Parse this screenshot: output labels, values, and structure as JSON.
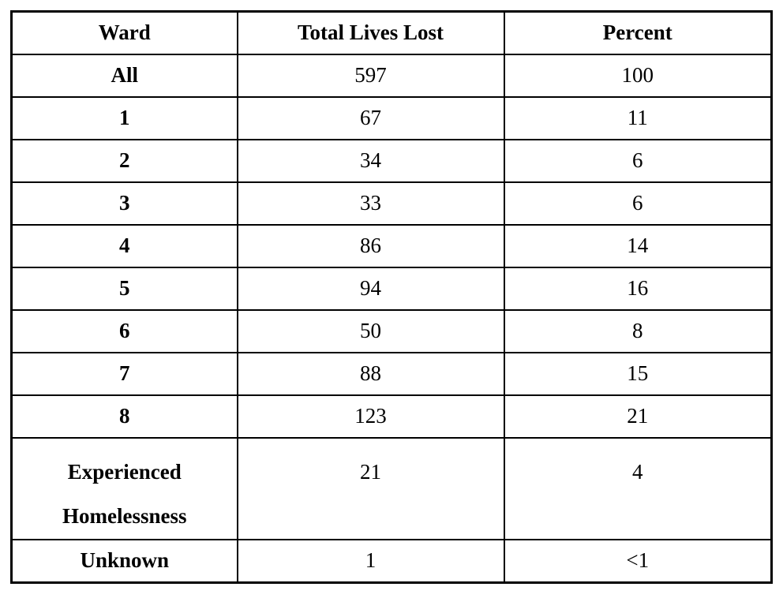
{
  "page": {
    "background_color": "#ffffff",
    "border_color": "#000000",
    "text_color": "#000000"
  },
  "table": {
    "headers": [
      "Ward",
      "Total Lives Lost",
      "Percent"
    ],
    "rows": [
      [
        "All",
        "597",
        "100"
      ],
      [
        "1",
        "67",
        "11"
      ],
      [
        "2",
        "34",
        "6"
      ],
      [
        "3",
        "33",
        "6"
      ],
      [
        "4",
        "86",
        "14"
      ],
      [
        "5",
        "94",
        "16"
      ],
      [
        "6",
        "50",
        "8"
      ],
      [
        "7",
        "88",
        "15"
      ],
      [
        "8",
        "123",
        "21"
      ],
      [
        "Experienced Homelessness",
        "21",
        "4"
      ],
      [
        "Unknown",
        "1",
        "<1"
      ]
    ]
  }
}
